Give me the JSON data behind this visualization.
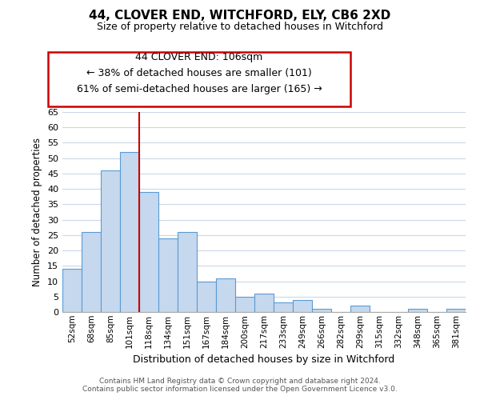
{
  "title1": "44, CLOVER END, WITCHFORD, ELY, CB6 2XD",
  "title2": "Size of property relative to detached houses in Witchford",
  "xlabel": "Distribution of detached houses by size in Witchford",
  "ylabel": "Number of detached properties",
  "categories": [
    "52sqm",
    "68sqm",
    "85sqm",
    "101sqm",
    "118sqm",
    "134sqm",
    "151sqm",
    "167sqm",
    "184sqm",
    "200sqm",
    "217sqm",
    "233sqm",
    "249sqm",
    "266sqm",
    "282sqm",
    "299sqm",
    "315sqm",
    "332sqm",
    "348sqm",
    "365sqm",
    "381sqm"
  ],
  "values": [
    14,
    26,
    46,
    52,
    39,
    24,
    26,
    10,
    11,
    5,
    6,
    3,
    4,
    1,
    0,
    2,
    0,
    0,
    1,
    0,
    1
  ],
  "bar_color": "#c5d8ed",
  "bar_edge_color": "#5b9bd5",
  "highlight_bar_index": 3,
  "highlight_line_color": "#cc0000",
  "ylim": [
    0,
    65
  ],
  "yticks": [
    0,
    5,
    10,
    15,
    20,
    25,
    30,
    35,
    40,
    45,
    50,
    55,
    60,
    65
  ],
  "annotation_title": "44 CLOVER END: 106sqm",
  "annotation_line1": "← 38% of detached houses are smaller (101)",
  "annotation_line2": "61% of semi-detached houses are larger (165) →",
  "annotation_box_color": "#ffffff",
  "annotation_box_edge": "#cc0000",
  "footer1": "Contains HM Land Registry data © Crown copyright and database right 2024.",
  "footer2": "Contains public sector information licensed under the Open Government Licence v3.0.",
  "background_color": "#ffffff",
  "grid_color": "#c8d8e8"
}
